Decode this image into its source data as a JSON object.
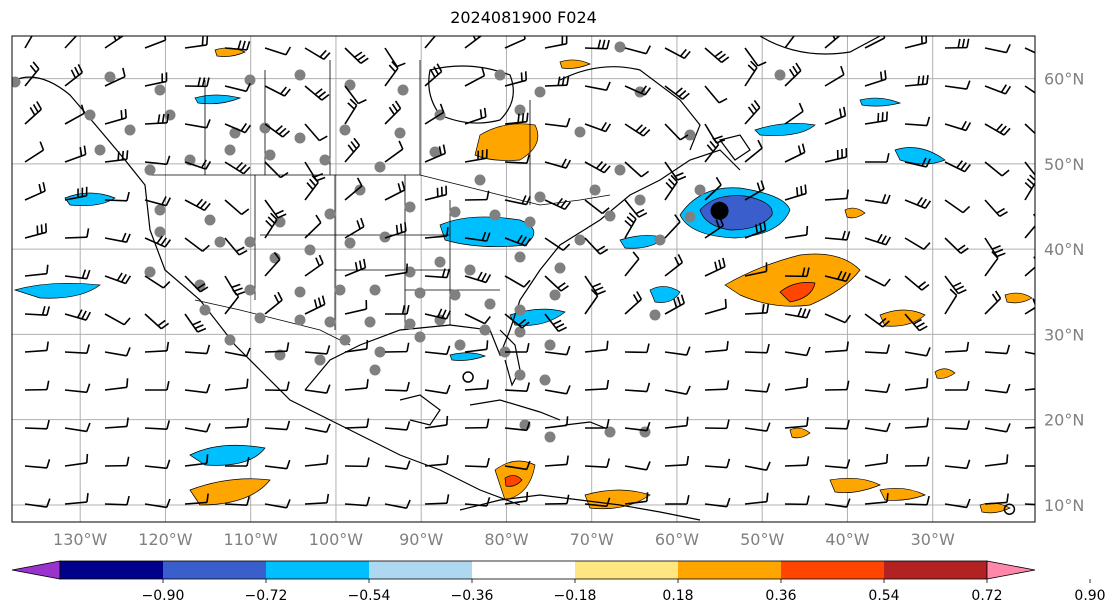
{
  "title": "2024081900 F024",
  "map": {
    "lon_min": -138,
    "lon_max": -18,
    "lat_min": 8,
    "lat_max": 65,
    "lon_ticks": [
      {
        "value": -130,
        "label": "130°W"
      },
      {
        "value": -120,
        "label": "120°W"
      },
      {
        "value": -110,
        "label": "110°W"
      },
      {
        "value": -100,
        "label": "100°W"
      },
      {
        "value": -90,
        "label": "90°W"
      },
      {
        "value": -80,
        "label": "80°W"
      },
      {
        "value": -70,
        "label": "70°W"
      },
      {
        "value": -60,
        "label": "60°W"
      },
      {
        "value": -50,
        "label": "50°W"
      },
      {
        "value": -40,
        "label": "40°W"
      },
      {
        "value": -30,
        "label": "30°W"
      }
    ],
    "lat_ticks": [
      {
        "value": 60,
        "label": "60°N"
      },
      {
        "value": 50,
        "label": "50°N"
      },
      {
        "value": 40,
        "label": "40°N"
      },
      {
        "value": 30,
        "label": "30°N"
      },
      {
        "value": 20,
        "label": "20°N"
      },
      {
        "value": 10,
        "label": "10°N"
      }
    ],
    "gridlines": true
  },
  "colorbar": {
    "colors": [
      "#9a32cd",
      "#00008b",
      "#3a5fcd",
      "#00bfff",
      "#add8f0",
      "#ffffff",
      "#ffe680",
      "#ffa500",
      "#ff4500",
      "#b22222",
      "#ff88aa"
    ],
    "ticks": [
      "−0.90",
      "−0.72",
      "−0.54",
      "−0.36",
      "−0.18",
      "0.18",
      "0.36",
      "0.54",
      "0.72",
      "0.90"
    ]
  },
  "markers": {
    "filled_circle": {
      "lon": -55,
      "lat": 44.5
    },
    "open_circles": [
      {
        "lon": -84.5,
        "lat": 25
      },
      {
        "lon": -21,
        "lat": 9.5
      }
    ]
  }
}
